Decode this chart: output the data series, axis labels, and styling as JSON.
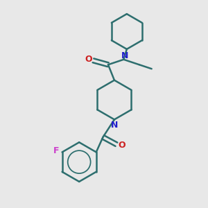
{
  "bg_color": "#e8e8e8",
  "bond_color": "#2d6e6e",
  "N_color": "#2020cc",
  "O_color": "#cc2020",
  "F_color": "#cc40cc",
  "line_width": 1.8,
  "figsize": [
    3.0,
    3.0
  ],
  "dpi": 100,
  "xlim": [
    0,
    10
  ],
  "ylim": [
    0,
    10
  ]
}
